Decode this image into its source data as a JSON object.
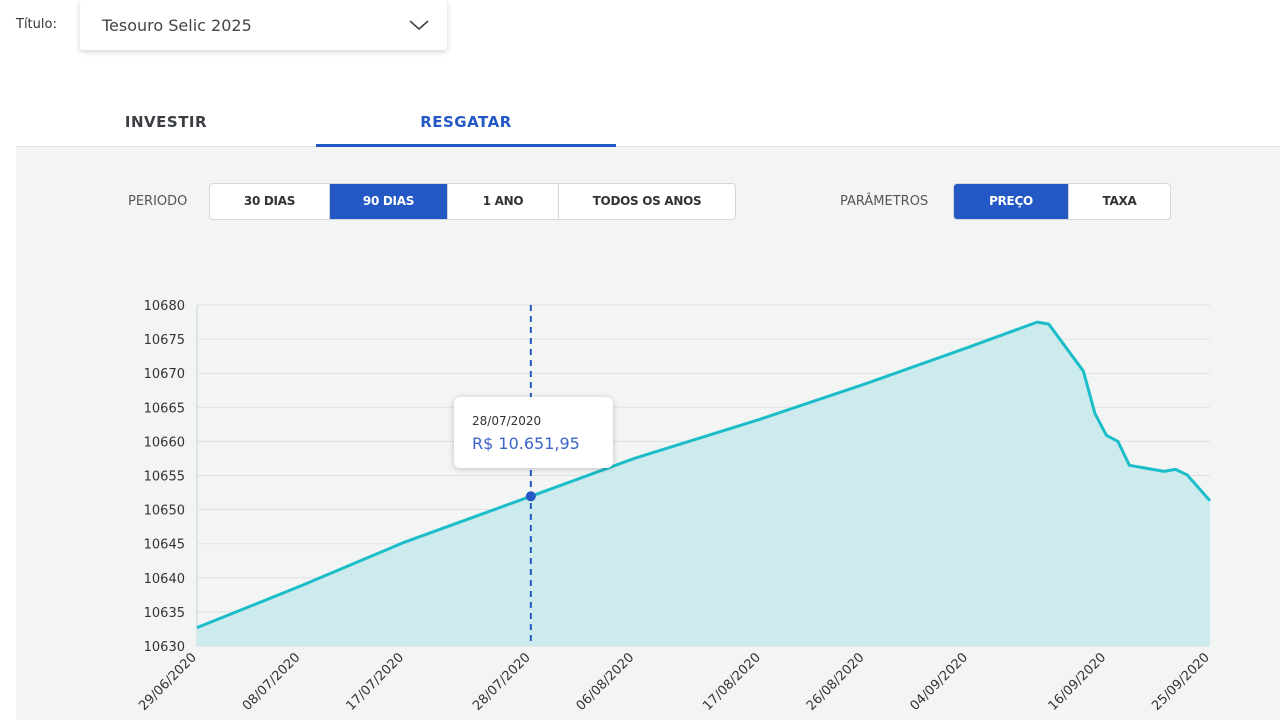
{
  "header": {
    "title_label": "Título:",
    "selected_title": "Tesouro Selic 2025"
  },
  "tabs": [
    {
      "label": "INVESTIR",
      "active": false
    },
    {
      "label": "RESGATAR",
      "active": true
    }
  ],
  "period": {
    "label": "PERIODO",
    "options": [
      "30 DIAS",
      "90 DIAS",
      "1 ANO",
      "TODOS OS ANOS"
    ],
    "selected": "90 DIAS"
  },
  "parameters": {
    "label": "PARÂMETROS",
    "options": [
      "PREÇO",
      "TAXA"
    ],
    "selected": "PREÇO"
  },
  "tooltip": {
    "date": "28/07/2020",
    "value": "R$ 10.651,95"
  },
  "colors": {
    "accent": "#2459c5",
    "line": "#1bbdc9",
    "fill": "#cdebed",
    "panel": "#f3f4f4"
  },
  "chart_data": {
    "type": "area",
    "title": "",
    "xlabel": "",
    "ylabel": "",
    "ylim": [
      10630,
      10680
    ],
    "yticks": [
      10630,
      10635,
      10640,
      10645,
      10650,
      10655,
      10660,
      10665,
      10670,
      10675,
      10680
    ],
    "xlim": [
      "2020-06-29",
      "2020-09-25"
    ],
    "xtick_labels": [
      "29/06/2020",
      "08/07/2020",
      "17/07/2020",
      "28/07/2020",
      "06/08/2020",
      "17/08/2020",
      "26/08/2020",
      "04/09/2020",
      "16/09/2020",
      "25/09/2020"
    ],
    "grid": true,
    "highlight": {
      "x": "2020-07-28",
      "y": 10651.95
    },
    "series": [
      {
        "points": [
          [
            "2020-06-29",
            10632.7
          ],
          [
            "2020-07-08",
            10638.8
          ],
          [
            "2020-07-17",
            10645.2
          ],
          [
            "2020-07-28",
            10651.95
          ],
          [
            "2020-08-06",
            10657.5
          ],
          [
            "2020-08-17",
            10663.3
          ],
          [
            "2020-08-26",
            10668.4
          ],
          [
            "2020-09-04",
            10673.8
          ],
          [
            "2020-09-10",
            10677.5
          ],
          [
            "2020-09-11",
            10677.2
          ],
          [
            "2020-09-14",
            10670.3
          ],
          [
            "2020-09-15",
            10664.1
          ],
          [
            "2020-09-16",
            10660.9
          ],
          [
            "2020-09-17",
            10660.0
          ],
          [
            "2020-09-18",
            10656.5
          ],
          [
            "2020-09-21",
            10655.6
          ],
          [
            "2020-09-22",
            10655.9
          ],
          [
            "2020-09-23",
            10655.1
          ],
          [
            "2020-09-25",
            10651.3
          ]
        ]
      }
    ]
  }
}
